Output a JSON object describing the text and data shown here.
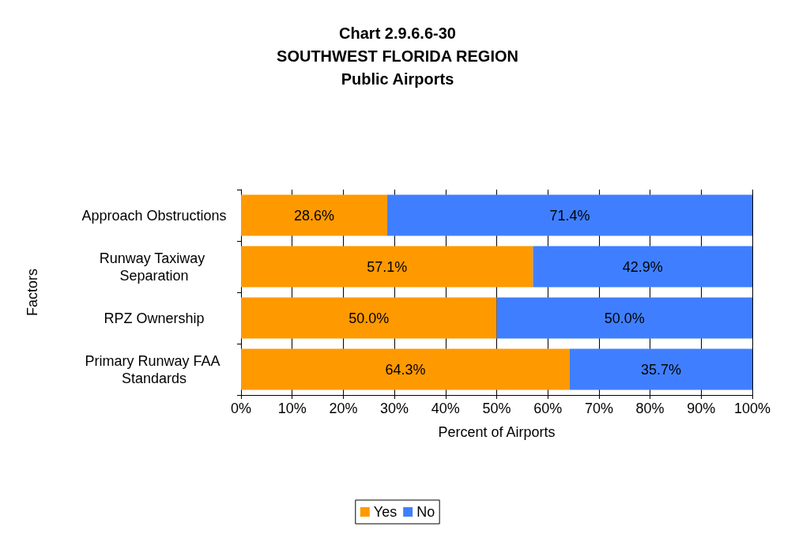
{
  "chart_data": {
    "type": "bar",
    "orientation": "horizontal",
    "stacked": true,
    "title": "Chart 2.9.6.6-30\nSOUTHWEST FLORIDA REGION\nPublic Airports",
    "xlabel": "Percent of Airports",
    "ylabel": "Factors",
    "categories": [
      "Approach Obstructions",
      "Runway Taxiway Separation",
      "RPZ Ownership",
      "Primary Runway FAA Standards"
    ],
    "series": [
      {
        "name": "Yes",
        "color": "#ff9900",
        "values": [
          28.6,
          57.1,
          50.0,
          64.3
        ],
        "value_labels": [
          "28.6%",
          "57.1%",
          "50.0%",
          "64.3%"
        ]
      },
      {
        "name": "No",
        "color": "#3f7fff",
        "values": [
          71.4,
          42.9,
          50.0,
          35.7
        ],
        "value_labels": [
          "71.4%",
          "42.9%",
          "50.0%",
          "35.7%"
        ]
      }
    ],
    "xlim": [
      0,
      100
    ],
    "xticks": [
      {
        "value": 0,
        "label": "0%"
      },
      {
        "value": 10,
        "label": "10%"
      },
      {
        "value": 20,
        "label": "20%"
      },
      {
        "value": 30,
        "label": "30%"
      },
      {
        "value": 40,
        "label": "40%"
      },
      {
        "value": 50,
        "label": "50%"
      },
      {
        "value": 60,
        "label": "60%"
      },
      {
        "value": 70,
        "label": "70%"
      },
      {
        "value": 80,
        "label": "80%"
      },
      {
        "value": 90,
        "label": "90%"
      },
      {
        "value": 100,
        "label": "100%"
      }
    ],
    "grid": "x",
    "legend": "bottom"
  }
}
